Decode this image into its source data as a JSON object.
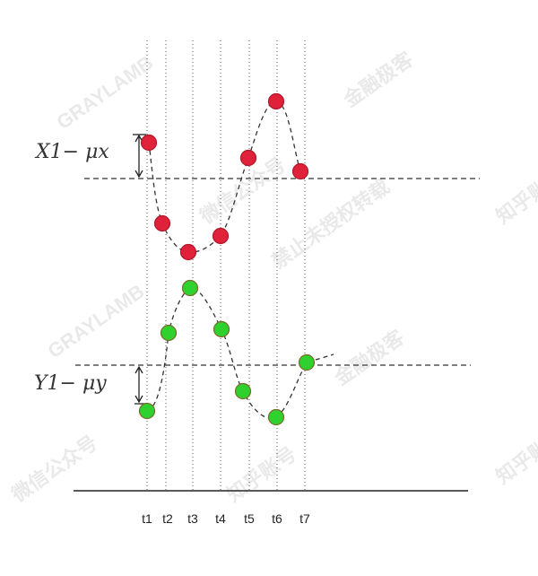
{
  "labels": {
    "x_deviation": "X1− μx",
    "y_deviation": "Y1− μy"
  },
  "time_labels": [
    "t1",
    "t2",
    "t3",
    "t4",
    "t5",
    "t6",
    "t7"
  ],
  "series": [
    {
      "name": "X",
      "color": "#e0213a"
    },
    {
      "name": "Y",
      "color": "#2fd12f"
    }
  ],
  "watermark": [
    "GRAYLAMB",
    "金融极客",
    "微信公众号",
    "知乎账号",
    "禁止未授权转载"
  ]
}
